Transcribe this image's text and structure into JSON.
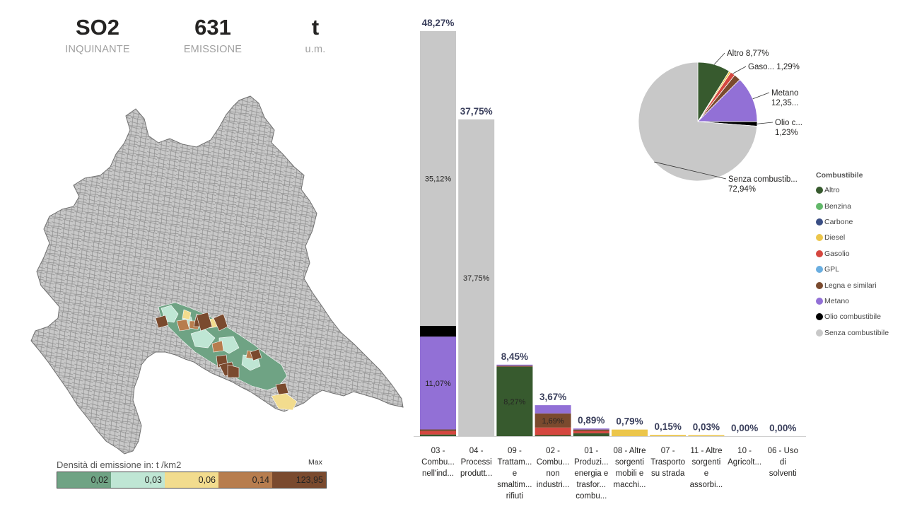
{
  "kpis": [
    {
      "value": "SO2",
      "label": "INQUINANTE"
    },
    {
      "value": "631",
      "label": "EMISSIONE"
    },
    {
      "value": "t",
      "label": "u.m."
    }
  ],
  "map_legend": {
    "title": "Densità di emissione in:  t /km2",
    "max_label": "Max",
    "classes": [
      {
        "label": "0,02",
        "color": "#6fa384"
      },
      {
        "label": "0,03",
        "color": "#bfe6d4"
      },
      {
        "label": "0,06",
        "color": "#f2dc8e"
      },
      {
        "label": "0,14",
        "color": "#b77d4e"
      },
      {
        "label": "123,95",
        "color": "#7a4a2e"
      }
    ]
  },
  "fuel_legend": {
    "title": "Combustibile",
    "items": [
      {
        "name": "Altro",
        "color": "#375a2e"
      },
      {
        "name": "Benzina",
        "color": "#62b86a"
      },
      {
        "name": "Carbone",
        "color": "#3a4e84"
      },
      {
        "name": "Diesel",
        "color": "#ecc64b"
      },
      {
        "name": "Gasolio",
        "color": "#d5473f"
      },
      {
        "name": "GPL",
        "color": "#6aaee0"
      },
      {
        "name": "Legna e similari",
        "color": "#7a4a2e"
      },
      {
        "name": "Metano",
        "color": "#9270d6"
      },
      {
        "name": "Olio combustibile",
        "color": "#000000"
      },
      {
        "name": "Senza combustibile",
        "color": "#c8c8c8"
      }
    ]
  },
  "chart_data": [
    {
      "type": "bar",
      "stacked": true,
      "ylim": [
        0,
        48.27
      ],
      "categories": [
        [
          "03 -",
          "Combu...",
          "nell'ind..."
        ],
        [
          "04 -",
          "Processi",
          "produtt..."
        ],
        [
          "09 -",
          "Trattam...",
          "e",
          "smaltim...",
          "rifiuti"
        ],
        [
          "02 -",
          "Combu...",
          "non",
          "industri..."
        ],
        [
          "01 -",
          "Produzi...",
          "energia e",
          "trasfor...",
          "combu..."
        ],
        [
          "08 - Altre",
          "sorgenti",
          "mobili e",
          "macchi..."
        ],
        [
          "07 -",
          "Trasporto",
          "su strada"
        ],
        [
          "11 - Altre",
          "sorgenti",
          "e",
          "assorbi..."
        ],
        [
          "10 -",
          "Agricolt..."
        ],
        [
          "06 - Uso",
          "di",
          "solventi"
        ]
      ],
      "totals_labels": [
        "48,27%",
        "37,75%",
        "8,45%",
        "3,67%",
        "0,89%",
        "0,79%",
        "0,15%",
        "0,03%",
        "0,00%",
        "0,00%"
      ],
      "series": [
        {
          "name": "Altro",
          "values": [
            0.2,
            0,
            8.27,
            0.1,
            0.35,
            0,
            0,
            0,
            0,
            0
          ]
        },
        {
          "name": "Diesel",
          "values": [
            0,
            0,
            0,
            0,
            0,
            0.79,
            0.15,
            0.03,
            0,
            0
          ]
        },
        {
          "name": "Gasolio",
          "values": [
            0.4,
            0,
            0,
            0.9,
            0.25,
            0,
            0,
            0,
            0,
            0
          ]
        },
        {
          "name": "Legna e similari",
          "values": [
            0.2,
            0,
            0.1,
            1.69,
            0.19,
            0,
            0,
            0,
            0,
            0
          ]
        },
        {
          "name": "Metano",
          "values": [
            11.07,
            0,
            0.08,
            0.98,
            0.1,
            0,
            0,
            0,
            0,
            0
          ]
        },
        {
          "name": "Olio combustibile",
          "values": [
            1.28,
            0,
            0,
            0,
            0,
            0,
            0,
            0,
            0,
            0
          ]
        },
        {
          "name": "Senza combustibile",
          "values": [
            35.12,
            37.75,
            0,
            0,
            0,
            0,
            0,
            0,
            0,
            0
          ]
        }
      ],
      "segment_labels": [
        {
          "bar": 0,
          "series": "Senza combustibile",
          "text": "35,12%"
        },
        {
          "bar": 0,
          "series": "Metano",
          "text": "11,07%"
        },
        {
          "bar": 1,
          "series": "Senza combustibile",
          "text": "37,75%"
        },
        {
          "bar": 2,
          "series": "Altro",
          "text": "8,27%"
        },
        {
          "bar": 3,
          "series": "Legna e similari",
          "text": "1,69%"
        }
      ]
    },
    {
      "type": "pie",
      "slices": [
        {
          "name": "Altro",
          "value": 8.77,
          "label": [
            "Altro 8,77%"
          ]
        },
        {
          "name": "Diesel",
          "value": 0.5,
          "label": null
        },
        {
          "name": "Gasolio",
          "value": 1.29,
          "label": [
            "Gaso... 1,29%"
          ]
        },
        {
          "name": "Legna e similari",
          "value": 1.8,
          "label": null
        },
        {
          "name": "Metano",
          "value": 12.35,
          "label": [
            "Metano",
            "12,35..."
          ]
        },
        {
          "name": "Olio combustibile",
          "value": 1.23,
          "label": [
            "Olio c...",
            "1,23%"
          ]
        },
        {
          "name": "Senza combustibile",
          "value": 72.94,
          "label": [
            "Senza combustib...",
            "72,94%"
          ]
        }
      ]
    }
  ]
}
